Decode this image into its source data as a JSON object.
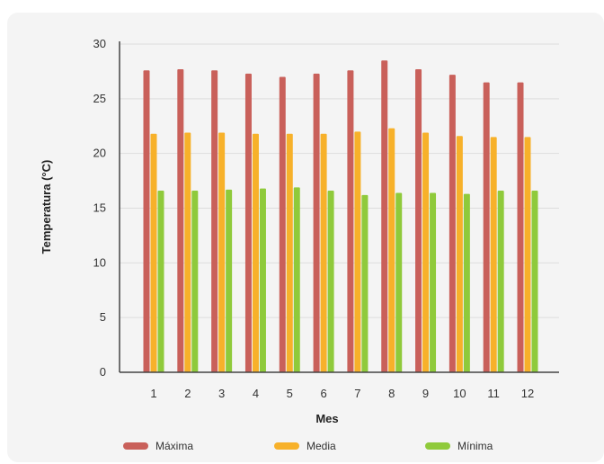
{
  "chart_data": {
    "type": "bar",
    "title": "",
    "xlabel": "Mes",
    "ylabel": "Temperatura (°C)",
    "categories": [
      "1",
      "2",
      "3",
      "4",
      "5",
      "6",
      "7",
      "8",
      "9",
      "10",
      "11",
      "12"
    ],
    "ylim": [
      0,
      30
    ],
    "yticks": [
      "0",
      "5",
      "10",
      "15",
      "20",
      "25",
      "30"
    ],
    "grid": "horizontal",
    "legend_position": "bottom",
    "series": [
      {
        "name": "Máxima",
        "color": "#c9605a",
        "values": [
          27.6,
          27.7,
          27.6,
          27.3,
          27.0,
          27.3,
          27.6,
          28.5,
          27.7,
          27.2,
          26.5,
          26.5
        ]
      },
      {
        "name": "Media",
        "color": "#f7b12a",
        "values": [
          21.8,
          21.9,
          21.9,
          21.8,
          21.8,
          21.8,
          22.0,
          22.3,
          21.9,
          21.6,
          21.5,
          21.5
        ]
      },
      {
        "name": "Mínima",
        "color": "#8fca3b",
        "values": [
          16.6,
          16.6,
          16.7,
          16.8,
          16.9,
          16.6,
          16.2,
          16.4,
          16.4,
          16.3,
          16.6,
          16.6
        ]
      }
    ]
  }
}
